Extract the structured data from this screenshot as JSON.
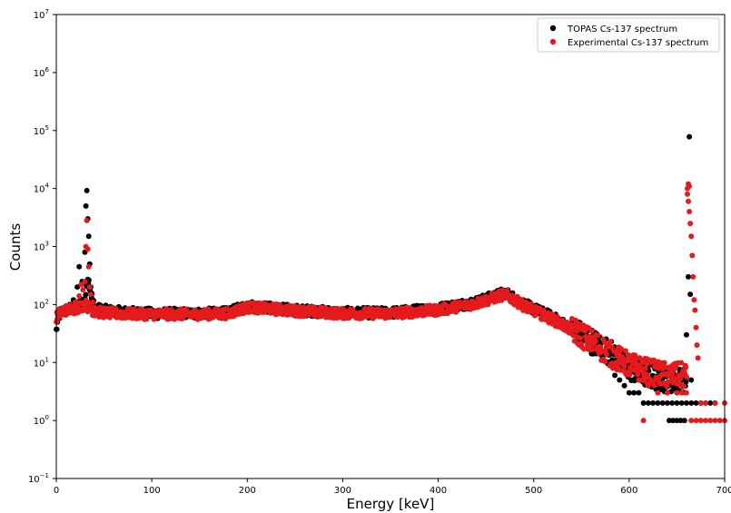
{
  "chart_data": {
    "type": "scatter",
    "title": "",
    "xlabel": "Energy [keV]",
    "ylabel": "Counts",
    "xlim": [
      0,
      700
    ],
    "ylim_exponents": [
      -1,
      7
    ],
    "yscale": "log",
    "grid": false,
    "legend_position": "top-right",
    "x_ticks": [
      "0",
      "100",
      "200",
      "300",
      "400",
      "500",
      "600",
      "700"
    ],
    "y_ticks": [
      {
        "base": "10",
        "exp": "−1"
      },
      {
        "base": "10",
        "exp": "0"
      },
      {
        "base": "10",
        "exp": "1"
      },
      {
        "base": "10",
        "exp": "2"
      },
      {
        "base": "10",
        "exp": "3"
      },
      {
        "base": "10",
        "exp": "4"
      },
      {
        "base": "10",
        "exp": "5"
      },
      {
        "base": "10",
        "exp": "6"
      },
      {
        "base": "10",
        "exp": "7"
      }
    ],
    "series": [
      {
        "name": "TOPAS Cs-137 spectrum",
        "color": "#000000",
        "trend": [
          [
            0,
            35
          ],
          [
            2,
            60
          ],
          [
            5,
            75
          ],
          [
            10,
            80
          ],
          [
            20,
            90
          ],
          [
            25,
            100
          ],
          [
            30,
            120
          ],
          [
            33,
            300
          ],
          [
            40,
            85
          ],
          [
            60,
            75
          ],
          [
            100,
            70
          ],
          [
            150,
            70
          ],
          [
            180,
            72
          ],
          [
            200,
            95
          ],
          [
            250,
            80
          ],
          [
            300,
            72
          ],
          [
            350,
            72
          ],
          [
            400,
            85
          ],
          [
            440,
            110
          ],
          [
            470,
            160
          ],
          [
            490,
            100
          ],
          [
            520,
            60
          ],
          [
            550,
            30
          ],
          [
            580,
            15
          ],
          [
            600,
            8
          ],
          [
            620,
            6
          ],
          [
            640,
            5
          ],
          [
            660,
            5
          ]
        ],
        "extra_points": [
          [
            12,
            75
          ],
          [
            18,
            120
          ],
          [
            22,
            200
          ],
          [
            24,
            450
          ],
          [
            27,
            250
          ],
          [
            30,
            800
          ],
          [
            31,
            5000
          ],
          [
            32,
            9200
          ],
          [
            33,
            3000
          ],
          [
            34,
            1500
          ],
          [
            35,
            500
          ],
          [
            36,
            200
          ],
          [
            37,
            120
          ],
          [
            663,
            78000
          ],
          [
            660,
            30
          ],
          [
            665,
            5
          ],
          [
            662,
            300
          ],
          [
            664,
            150
          ],
          [
            595,
            4
          ],
          [
            600,
            3
          ],
          [
            605,
            3
          ],
          [
            610,
            3
          ],
          [
            615,
            2
          ],
          [
            620,
            2
          ],
          [
            625,
            2
          ],
          [
            630,
            2
          ],
          [
            635,
            2
          ],
          [
            640,
            2
          ],
          [
            645,
            2
          ],
          [
            650,
            2
          ],
          [
            655,
            2
          ],
          [
            660,
            2
          ],
          [
            665,
            2
          ],
          [
            670,
            2
          ],
          [
            675,
            2
          ],
          [
            680,
            2
          ],
          [
            685,
            2
          ],
          [
            690,
            2
          ],
          [
            642,
            1
          ],
          [
            646,
            1
          ],
          [
            650,
            1
          ],
          [
            654,
            1
          ],
          [
            658,
            1
          ],
          [
            590,
            5
          ],
          [
            585,
            6
          ],
          [
            598,
            6
          ],
          [
            604,
            5
          ]
        ]
      },
      {
        "name": "Experimental Cs-137 spectrum",
        "color": "#e41a1c",
        "trend": [
          [
            0,
            60
          ],
          [
            5,
            75
          ],
          [
            10,
            80
          ],
          [
            20,
            85
          ],
          [
            30,
            100
          ],
          [
            40,
            75
          ],
          [
            60,
            70
          ],
          [
            100,
            68
          ],
          [
            150,
            68
          ],
          [
            180,
            70
          ],
          [
            200,
            90
          ],
          [
            250,
            78
          ],
          [
            300,
            70
          ],
          [
            350,
            70
          ],
          [
            400,
            80
          ],
          [
            440,
            105
          ],
          [
            470,
            150
          ],
          [
            490,
            95
          ],
          [
            520,
            55
          ],
          [
            550,
            30
          ],
          [
            580,
            14
          ],
          [
            600,
            9
          ],
          [
            620,
            7
          ],
          [
            640,
            6
          ],
          [
            660,
            6
          ]
        ],
        "extra_points": [
          [
            20,
            110
          ],
          [
            24,
            140
          ],
          [
            26,
            220
          ],
          [
            28,
            180
          ],
          [
            30,
            250
          ],
          [
            31,
            1000
          ],
          [
            32,
            2800
          ],
          [
            33,
            900
          ],
          [
            34,
            450
          ],
          [
            35,
            200
          ],
          [
            36,
            150
          ],
          [
            38,
            110
          ],
          [
            40,
            90
          ],
          [
            661,
            10000
          ],
          [
            662,
            12000
          ],
          [
            663,
            11000
          ],
          [
            661,
            8000
          ],
          [
            662,
            6000
          ],
          [
            663,
            4000
          ],
          [
            664,
            2500
          ],
          [
            665,
            1500
          ],
          [
            666,
            700
          ],
          [
            667,
            300
          ],
          [
            668,
            120
          ],
          [
            669,
            80
          ],
          [
            670,
            40
          ],
          [
            671,
            20
          ],
          [
            672,
            12
          ],
          [
            630,
            3
          ],
          [
            640,
            3
          ],
          [
            650,
            3
          ],
          [
            655,
            3
          ],
          [
            660,
            3
          ],
          [
            675,
            2
          ],
          [
            680,
            2
          ],
          [
            690,
            2
          ],
          [
            700,
            2
          ],
          [
            615,
            1
          ],
          [
            665,
            1
          ],
          [
            670,
            1
          ],
          [
            675,
            1
          ],
          [
            680,
            1
          ],
          [
            685,
            1
          ],
          [
            690,
            1
          ],
          [
            695,
            1
          ],
          [
            700,
            1
          ],
          [
            590,
            10
          ],
          [
            600,
            7
          ],
          [
            610,
            5
          ],
          [
            620,
            4
          ]
        ]
      }
    ]
  }
}
